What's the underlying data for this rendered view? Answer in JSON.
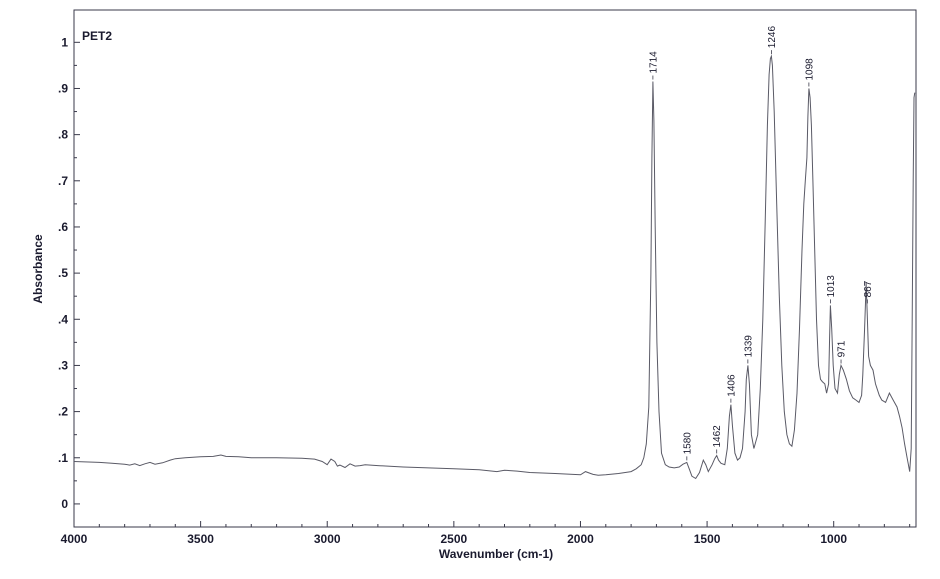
{
  "chart_data": {
    "type": "line",
    "title": "PET2",
    "xlabel": "Wavenumber (cm-1)",
    "ylabel": "Absorbance",
    "xlim": [
      4000,
      675
    ],
    "ylim": [
      -0.05,
      1.07
    ],
    "x_reversed": true,
    "grid": false,
    "x_ticks": [
      4000,
      3500,
      3000,
      2500,
      2000,
      1500,
      1000
    ],
    "x_tick_labels": [
      "4000",
      "3500",
      "3000",
      "2500",
      "2000",
      "1500",
      "1000"
    ],
    "y_ticks": [
      0,
      0.1,
      0.2,
      0.3,
      0.4,
      0.5,
      0.6,
      0.7,
      0.8,
      0.9,
      1.0
    ],
    "y_tick_labels": [
      "0",
      ".1",
      ".2",
      ".3",
      ".4",
      ".5",
      ".6",
      ".7",
      ".8",
      ".9",
      "1"
    ],
    "line_color": "#5a5a66",
    "series": [
      {
        "x": [
          4000,
          3900,
          3850,
          3800,
          3780,
          3760,
          3740,
          3720,
          3700,
          3680,
          3650,
          3620,
          3600,
          3560,
          3500,
          3450,
          3420,
          3400,
          3350,
          3300,
          3200,
          3100,
          3050,
          3020,
          3000,
          2985,
          2970,
          2960,
          2950,
          2930,
          2910,
          2890,
          2870,
          2850,
          2800,
          2700,
          2600,
          2500,
          2400,
          2330,
          2300,
          2250,
          2200,
          2100,
          2000,
          1980,
          1960,
          1950,
          1930,
          1900,
          1850,
          1800,
          1780,
          1760,
          1750,
          1740,
          1730,
          1722,
          1718,
          1714,
          1710,
          1705,
          1698,
          1690,
          1680,
          1665,
          1650,
          1630,
          1610,
          1595,
          1580,
          1570,
          1560,
          1545,
          1530,
          1515,
          1505,
          1495,
          1480,
          1470,
          1462,
          1455,
          1445,
          1430,
          1420,
          1412,
          1406,
          1400,
          1390,
          1380,
          1370,
          1360,
          1350,
          1345,
          1339,
          1333,
          1325,
          1315,
          1300,
          1290,
          1280,
          1270,
          1262,
          1255,
          1250,
          1246,
          1242,
          1235,
          1225,
          1215,
          1205,
          1195,
          1185,
          1175,
          1165,
          1155,
          1145,
          1135,
          1125,
          1118,
          1112,
          1106,
          1102,
          1098,
          1093,
          1088,
          1082,
          1075,
          1068,
          1060,
          1052,
          1045,
          1035,
          1028,
          1020,
          1016,
          1013,
          1008,
          1002,
          995,
          985,
          978,
          971,
          962,
          950,
          938,
          925,
          912,
          900,
          890,
          885,
          878,
          875,
          872,
          868,
          862,
          855,
          845,
          835,
          820,
          810,
          795,
          780,
          765,
          750,
          740,
          730,
          720,
          710,
          705,
          700,
          694,
          690,
          686,
          683,
          680,
          678
        ],
        "y": [
          0.092,
          0.09,
          0.088,
          0.086,
          0.084,
          0.087,
          0.083,
          0.087,
          0.09,
          0.086,
          0.089,
          0.095,
          0.098,
          0.1,
          0.102,
          0.103,
          0.106,
          0.103,
          0.102,
          0.1,
          0.1,
          0.099,
          0.097,
          0.092,
          0.085,
          0.097,
          0.092,
          0.082,
          0.084,
          0.079,
          0.087,
          0.082,
          0.083,
          0.085,
          0.083,
          0.08,
          0.078,
          0.076,
          0.074,
          0.07,
          0.073,
          0.071,
          0.068,
          0.066,
          0.063,
          0.07,
          0.066,
          0.064,
          0.062,
          0.063,
          0.066,
          0.07,
          0.076,
          0.085,
          0.1,
          0.13,
          0.21,
          0.5,
          0.75,
          0.915,
          0.83,
          0.6,
          0.35,
          0.2,
          0.11,
          0.085,
          0.08,
          0.078,
          0.08,
          0.086,
          0.09,
          0.075,
          0.06,
          0.055,
          0.068,
          0.095,
          0.085,
          0.07,
          0.085,
          0.098,
          0.105,
          0.095,
          0.088,
          0.085,
          0.12,
          0.19,
          0.215,
          0.17,
          0.11,
          0.095,
          0.1,
          0.12,
          0.2,
          0.27,
          0.3,
          0.26,
          0.15,
          0.12,
          0.15,
          0.25,
          0.4,
          0.62,
          0.82,
          0.93,
          0.965,
          0.97,
          0.95,
          0.85,
          0.65,
          0.45,
          0.3,
          0.2,
          0.15,
          0.13,
          0.125,
          0.16,
          0.24,
          0.38,
          0.55,
          0.65,
          0.7,
          0.75,
          0.84,
          0.9,
          0.88,
          0.82,
          0.7,
          0.55,
          0.4,
          0.3,
          0.27,
          0.265,
          0.26,
          0.24,
          0.26,
          0.36,
          0.43,
          0.38,
          0.3,
          0.25,
          0.24,
          0.28,
          0.3,
          0.29,
          0.27,
          0.245,
          0.23,
          0.225,
          0.22,
          0.235,
          0.28,
          0.38,
          0.43,
          0.48,
          0.42,
          0.32,
          0.3,
          0.29,
          0.26,
          0.235,
          0.225,
          0.22,
          0.24,
          0.225,
          0.21,
          0.19,
          0.165,
          0.13,
          0.1,
          0.085,
          0.07,
          0.12,
          0.4,
          0.7,
          0.88,
          0.89,
          0.89
        ]
      }
    ],
    "peak_labels": [
      {
        "x": 1714,
        "y": 0.915,
        "text": "1714"
      },
      {
        "x": 1580,
        "y": 0.09,
        "text": "1580"
      },
      {
        "x": 1462,
        "y": 0.105,
        "text": "1462"
      },
      {
        "x": 1406,
        "y": 0.215,
        "text": "1406"
      },
      {
        "x": 1339,
        "y": 0.3,
        "text": "1339"
      },
      {
        "x": 1246,
        "y": 0.97,
        "text": "1246"
      },
      {
        "x": 1098,
        "y": 0.9,
        "text": "1098"
      },
      {
        "x": 1013,
        "y": 0.43,
        "text": "1013"
      },
      {
        "x": 971,
        "y": 0.3,
        "text": "971"
      },
      {
        "x": 867,
        "y": 0.43,
        "text": "867"
      }
    ]
  }
}
